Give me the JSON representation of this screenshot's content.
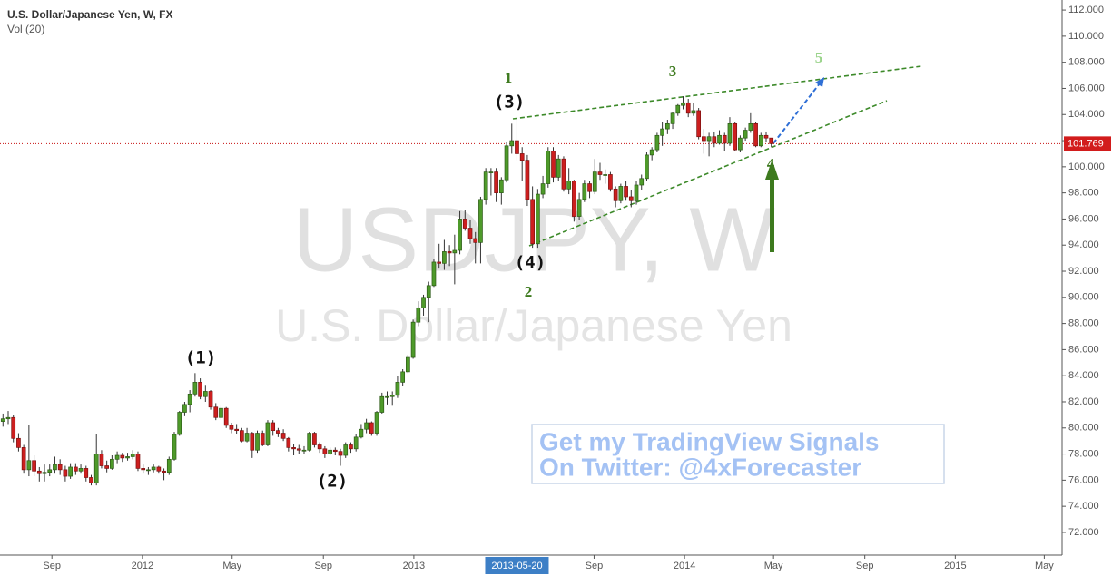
{
  "chart_data": {
    "type": "candlestick",
    "title": "U.S. Dollar/Japanese Yen, W, FX",
    "indicator": "Vol (20)",
    "watermark": [
      "USDJPY, W",
      "U.S. Dollar/Japanese Yen"
    ],
    "annotations": [
      "(1)",
      "(2)",
      "(3)",
      "(4)",
      "1",
      "2",
      "3",
      "4",
      "5"
    ],
    "promo": [
      "Get my TradingView Signals",
      "On Twitter: @4xForecaster"
    ],
    "up_color": "#4e9a2a",
    "down_color": "#cc1f1f",
    "last_price": 101.769,
    "xlim": [
      "2011-06-23",
      "2015-05-25"
    ],
    "xticks": [
      {
        "value": "2011-09-01",
        "label": "Sep"
      },
      {
        "value": "2012-01-01",
        "label": "2012"
      },
      {
        "value": "2012-05-01",
        "label": "May"
      },
      {
        "value": "2012-09-01",
        "label": "Sep"
      },
      {
        "value": "2013-01-01",
        "label": "2013"
      },
      {
        "value": "2013-05-20",
        "label": "2013-05-20"
      },
      {
        "value": "2013-09-01",
        "label": "Sep"
      },
      {
        "value": "2014-01-01",
        "label": "2014"
      },
      {
        "value": "2014-05-01",
        "label": "May"
      },
      {
        "value": "2014-09-01",
        "label": "Sep"
      },
      {
        "value": "2015-01-01",
        "label": "2015"
      },
      {
        "value": "2015-05-01",
        "label": "May"
      }
    ],
    "ylim": [
      70.26,
      112.77
    ],
    "yticks": [
      {
        "value": 112,
        "label": "112.000"
      },
      {
        "value": 110,
        "label": "110.000"
      },
      {
        "value": 108,
        "label": "108.000"
      },
      {
        "value": 106,
        "label": "106.000"
      },
      {
        "value": 104,
        "label": "104.000"
      },
      {
        "value": 102,
        "label": "102.000"
      },
      {
        "value": 100,
        "label": "100.000"
      },
      {
        "value": 98,
        "label": "98.000"
      },
      {
        "value": 96,
        "label": "96.000"
      },
      {
        "value": 94,
        "label": "94.000"
      },
      {
        "value": 92,
        "label": "92.000"
      },
      {
        "value": 90,
        "label": "90.000"
      },
      {
        "value": 88,
        "label": "88.000"
      },
      {
        "value": 86,
        "label": "86.000"
      },
      {
        "value": 84,
        "label": "84.000"
      },
      {
        "value": 82,
        "label": "82.000"
      },
      {
        "value": 80,
        "label": "80.000"
      },
      {
        "value": 78,
        "label": "78.000"
      },
      {
        "value": 76,
        "label": "76.000"
      },
      {
        "value": 74,
        "label": "74.000"
      },
      {
        "value": 72,
        "label": "72.000"
      }
    ],
    "x": [
      "2011-06-27",
      "2011-07-04",
      "2011-07-11",
      "2011-07-18",
      "2011-07-25",
      "2011-08-01",
      "2011-08-08",
      "2011-08-15",
      "2011-08-22",
      "2011-08-29",
      "2011-09-05",
      "2011-09-12",
      "2011-09-19",
      "2011-09-26",
      "2011-10-03",
      "2011-10-10",
      "2011-10-17",
      "2011-10-24",
      "2011-10-31",
      "2011-11-07",
      "2011-11-14",
      "2011-11-21",
      "2011-11-28",
      "2011-12-05",
      "2011-12-12",
      "2011-12-19",
      "2011-12-26",
      "2012-01-02",
      "2012-01-09",
      "2012-01-16",
      "2012-01-23",
      "2012-01-30",
      "2012-02-06",
      "2012-02-13",
      "2012-02-20",
      "2012-02-27",
      "2012-03-05",
      "2012-03-12",
      "2012-03-19",
      "2012-03-26",
      "2012-04-02",
      "2012-04-09",
      "2012-04-16",
      "2012-04-23",
      "2012-04-30",
      "2012-05-07",
      "2012-05-14",
      "2012-05-21",
      "2012-05-28",
      "2012-06-04",
      "2012-06-11",
      "2012-06-18",
      "2012-06-25",
      "2012-07-02",
      "2012-07-09",
      "2012-07-16",
      "2012-07-23",
      "2012-07-30",
      "2012-08-06",
      "2012-08-13",
      "2012-08-20",
      "2012-08-27",
      "2012-09-03",
      "2012-09-10",
      "2012-09-17",
      "2012-09-24",
      "2012-10-01",
      "2012-10-08",
      "2012-10-15",
      "2012-10-22",
      "2012-10-29",
      "2012-11-05",
      "2012-11-12",
      "2012-11-19",
      "2012-11-26",
      "2012-12-03",
      "2012-12-10",
      "2012-12-17",
      "2012-12-24",
      "2012-12-31",
      "2013-01-07",
      "2013-01-14",
      "2013-01-21",
      "2013-01-28",
      "2013-02-04",
      "2013-02-11",
      "2013-02-18",
      "2013-02-25",
      "2013-03-04",
      "2013-03-11",
      "2013-03-18",
      "2013-03-25",
      "2013-04-01",
      "2013-04-08",
      "2013-04-15",
      "2013-04-22",
      "2013-04-29",
      "2013-05-06",
      "2013-05-13",
      "2013-05-20",
      "2013-05-27",
      "2013-06-03",
      "2013-06-10",
      "2013-06-17",
      "2013-06-24",
      "2013-07-01",
      "2013-07-08",
      "2013-07-15",
      "2013-07-22",
      "2013-07-29",
      "2013-08-05",
      "2013-08-12",
      "2013-08-19",
      "2013-08-26",
      "2013-09-02",
      "2013-09-09",
      "2013-09-16",
      "2013-09-23",
      "2013-09-30",
      "2013-10-07",
      "2013-10-14",
      "2013-10-21",
      "2013-10-28",
      "2013-11-04",
      "2013-11-11",
      "2013-11-18",
      "2013-11-25",
      "2013-12-02",
      "2013-12-09",
      "2013-12-16",
      "2013-12-23",
      "2013-12-30",
      "2014-01-06",
      "2014-01-13",
      "2014-01-20",
      "2014-01-27",
      "2014-02-03",
      "2014-02-10",
      "2014-02-17",
      "2014-02-24",
      "2014-03-03",
      "2014-03-10",
      "2014-03-17",
      "2014-03-24",
      "2014-03-31",
      "2014-04-07",
      "2014-04-14",
      "2014-04-21",
      "2014-04-28"
    ],
    "candles": [
      [
        80.5,
        81.1,
        80.1,
        80.7
      ],
      [
        80.7,
        81.3,
        80.3,
        80.8
      ],
      [
        80.8,
        81.0,
        78.9,
        79.2
      ],
      [
        79.2,
        79.6,
        78.2,
        78.5
      ],
      [
        78.5,
        78.7,
        76.5,
        76.8
      ],
      [
        76.8,
        80.2,
        76.3,
        77.5
      ],
      [
        77.5,
        77.9,
        76.3,
        76.7
      ],
      [
        76.7,
        77.0,
        75.9,
        76.5
      ],
      [
        76.5,
        77.2,
        75.9,
        76.6
      ],
      [
        76.6,
        77.2,
        76.3,
        76.8
      ],
      [
        76.8,
        77.8,
        76.5,
        77.2
      ],
      [
        77.2,
        77.6,
        76.4,
        76.8
      ],
      [
        76.8,
        77.1,
        75.9,
        76.3
      ],
      [
        76.3,
        77.3,
        76.1,
        77.0
      ],
      [
        77.0,
        77.3,
        76.4,
        76.7
      ],
      [
        76.7,
        77.2,
        76.5,
        76.9
      ],
      [
        76.9,
        77.1,
        75.9,
        76.2
      ],
      [
        76.2,
        76.4,
        75.6,
        75.8
      ],
      [
        75.8,
        79.5,
        75.6,
        78.0
      ],
      [
        78.0,
        78.3,
        76.9,
        77.1
      ],
      [
        77.1,
        77.5,
        76.6,
        76.9
      ],
      [
        76.9,
        77.9,
        76.8,
        77.6
      ],
      [
        77.6,
        78.2,
        77.3,
        77.9
      ],
      [
        77.9,
        78.1,
        77.4,
        77.7
      ],
      [
        77.7,
        78.1,
        77.5,
        77.8
      ],
      [
        77.8,
        78.3,
        77.6,
        78.0
      ],
      [
        78.0,
        78.2,
        76.7,
        76.9
      ],
      [
        76.9,
        77.2,
        76.5,
        76.8
      ],
      [
        76.8,
        77.0,
        76.4,
        76.8
      ],
      [
        76.8,
        77.2,
        76.6,
        77.0
      ],
      [
        77.0,
        77.1,
        76.5,
        76.7
      ],
      [
        76.7,
        76.9,
        76.0,
        76.6
      ],
      [
        76.6,
        77.8,
        76.4,
        77.6
      ],
      [
        77.6,
        79.7,
        77.5,
        79.5
      ],
      [
        79.5,
        81.3,
        79.4,
        81.2
      ],
      [
        81.2,
        82.0,
        80.9,
        81.8
      ],
      [
        81.8,
        82.9,
        81.2,
        82.6
      ],
      [
        82.6,
        84.2,
        82.4,
        83.5
      ],
      [
        83.5,
        83.8,
        82.2,
        82.4
      ],
      [
        82.4,
        83.3,
        82.0,
        82.8
      ],
      [
        82.8,
        82.9,
        81.4,
        81.6
      ],
      [
        81.6,
        81.9,
        80.6,
        80.8
      ],
      [
        80.8,
        81.8,
        80.6,
        81.5
      ],
      [
        81.5,
        81.6,
        80.0,
        80.2
      ],
      [
        80.2,
        80.4,
        79.6,
        79.9
      ],
      [
        79.9,
        80.3,
        79.5,
        79.8
      ],
      [
        79.8,
        80.0,
        78.9,
        79.0
      ],
      [
        79.0,
        80.0,
        78.9,
        79.6
      ],
      [
        79.6,
        79.7,
        77.7,
        78.3
      ],
      [
        78.3,
        79.8,
        78.1,
        79.6
      ],
      [
        79.6,
        79.8,
        78.6,
        78.7
      ],
      [
        78.7,
        80.6,
        78.6,
        80.4
      ],
      [
        80.4,
        80.6,
        79.4,
        79.8
      ],
      [
        79.8,
        80.0,
        79.3,
        79.6
      ],
      [
        79.6,
        79.9,
        79.0,
        79.2
      ],
      [
        79.2,
        79.3,
        78.2,
        78.5
      ],
      [
        78.5,
        78.8,
        77.9,
        78.4
      ],
      [
        78.4,
        78.7,
        78.0,
        78.3
      ],
      [
        78.3,
        78.6,
        78.0,
        78.3
      ],
      [
        78.3,
        79.7,
        78.2,
        79.6
      ],
      [
        79.6,
        79.7,
        78.5,
        78.7
      ],
      [
        78.7,
        78.9,
        78.1,
        78.4
      ],
      [
        78.4,
        78.6,
        77.7,
        78.0
      ],
      [
        78.0,
        78.5,
        77.9,
        78.3
      ],
      [
        78.3,
        78.5,
        77.9,
        78.2
      ],
      [
        78.2,
        78.4,
        77.1,
        77.9
      ],
      [
        77.9,
        78.9,
        77.7,
        78.7
      ],
      [
        78.7,
        78.9,
        78.1,
        78.4
      ],
      [
        78.4,
        79.5,
        78.2,
        79.3
      ],
      [
        79.3,
        80.3,
        79.2,
        79.9
      ],
      [
        79.9,
        80.7,
        79.6,
        80.4
      ],
      [
        80.4,
        80.5,
        79.4,
        79.6
      ],
      [
        79.6,
        81.3,
        79.4,
        81.2
      ],
      [
        81.2,
        82.7,
        81.1,
        82.4
      ],
      [
        82.4,
        82.8,
        81.8,
        82.4
      ],
      [
        82.4,
        82.8,
        81.7,
        82.5
      ],
      [
        82.5,
        84.0,
        82.3,
        83.5
      ],
      [
        83.5,
        84.5,
        83.2,
        84.3
      ],
      [
        84.3,
        85.6,
        84.2,
        85.4
      ],
      [
        85.4,
        88.3,
        85.3,
        88.1
      ],
      [
        88.1,
        89.7,
        87.8,
        89.2
      ],
      [
        89.2,
        90.2,
        88.6,
        90.0
      ],
      [
        90.0,
        91.2,
        88.1,
        90.9
      ],
      [
        90.9,
        92.9,
        90.8,
        92.7
      ],
      [
        92.7,
        94.1,
        92.2,
        92.6
      ],
      [
        92.6,
        94.4,
        92.1,
        93.5
      ],
      [
        93.5,
        94.0,
        92.4,
        93.4
      ],
      [
        93.4,
        94.8,
        91.0,
        93.6
      ],
      [
        93.6,
        96.6,
        93.3,
        96.0
      ],
      [
        96.0,
        96.7,
        95.1,
        95.3
      ],
      [
        95.3,
        95.9,
        94.1,
        94.5
      ],
      [
        94.5,
        95.0,
        92.6,
        94.2
      ],
      [
        94.2,
        97.7,
        92.6,
        97.5
      ],
      [
        97.5,
        99.9,
        97.1,
        99.6
      ],
      [
        99.6,
        99.9,
        97.8,
        99.6
      ],
      [
        99.6,
        99.9,
        97.3,
        98.0
      ],
      [
        98.0,
        99.2,
        97.1,
        99.0
      ],
      [
        99.0,
        101.9,
        98.8,
        101.6
      ],
      [
        101.6,
        103.3,
        101.0,
        102.0
      ],
      [
        102.0,
        103.7,
        100.5,
        101.0
      ],
      [
        101.0,
        101.5,
        98.9,
        100.5
      ],
      [
        100.5,
        100.9,
        97.0,
        97.5
      ],
      [
        97.5,
        98.5,
        93.8,
        94.1
      ],
      [
        94.1,
        98.3,
        93.8,
        97.9
      ],
      [
        97.9,
        99.3,
        97.6,
        98.7
      ],
      [
        98.7,
        101.5,
        98.4,
        101.2
      ],
      [
        101.2,
        101.5,
        98.8,
        99.2
      ],
      [
        99.2,
        100.9,
        98.9,
        100.6
      ],
      [
        100.6,
        100.8,
        98.1,
        98.3
      ],
      [
        98.3,
        99.9,
        97.9,
        98.9
      ],
      [
        98.9,
        99.0,
        95.8,
        96.2
      ],
      [
        96.2,
        98.0,
        95.9,
        97.5
      ],
      [
        97.5,
        99.0,
        97.3,
        98.7
      ],
      [
        98.7,
        98.9,
        97.6,
        98.1
      ],
      [
        98.1,
        100.6,
        97.9,
        99.6
      ],
      [
        99.6,
        100.3,
        99.0,
        99.4
      ],
      [
        99.4,
        99.8,
        98.7,
        99.4
      ],
      [
        99.4,
        99.6,
        98.1,
        98.3
      ],
      [
        98.3,
        98.5,
        96.9,
        97.4
      ],
      [
        97.4,
        98.7,
        97.2,
        98.5
      ],
      [
        98.5,
        98.9,
        97.4,
        97.7
      ],
      [
        97.7,
        98.2,
        96.9,
        97.4
      ],
      [
        97.4,
        98.9,
        97.1,
        98.6
      ],
      [
        98.6,
        99.4,
        98.2,
        99.1
      ],
      [
        99.1,
        101.1,
        98.9,
        100.9
      ],
      [
        100.9,
        101.5,
        100.5,
        101.3
      ],
      [
        101.3,
        102.6,
        101.1,
        102.4
      ],
      [
        102.4,
        103.4,
        101.6,
        102.9
      ],
      [
        102.9,
        103.6,
        102.5,
        103.3
      ],
      [
        103.3,
        104.2,
        102.9,
        104.1
      ],
      [
        104.1,
        104.8,
        103.9,
        104.7
      ],
      [
        104.7,
        105.4,
        104.4,
        104.9
      ],
      [
        104.9,
        105.2,
        103.8,
        104.1
      ],
      [
        104.1,
        104.9,
        103.9,
        104.3
      ],
      [
        104.3,
        104.5,
        102.1,
        102.3
      ],
      [
        102.3,
        102.9,
        101.0,
        102.0
      ],
      [
        102.0,
        102.6,
        100.8,
        102.3
      ],
      [
        102.3,
        102.7,
        101.5,
        101.8
      ],
      [
        101.8,
        102.8,
        101.7,
        102.4
      ],
      [
        102.4,
        102.6,
        101.2,
        101.8
      ],
      [
        101.8,
        103.8,
        101.6,
        103.3
      ],
      [
        103.3,
        103.4,
        101.2,
        101.3
      ],
      [
        101.3,
        102.4,
        101.1,
        102.2
      ],
      [
        102.2,
        103.0,
        102.0,
        102.8
      ],
      [
        102.8,
        104.1,
        102.6,
        103.3
      ],
      [
        103.3,
        103.4,
        101.5,
        101.6
      ],
      [
        101.6,
        102.6,
        101.5,
        102.4
      ],
      [
        102.4,
        102.7,
        101.9,
        102.2
      ],
      [
        102.2,
        102.1,
        101.5,
        101.769
      ]
    ]
  }
}
